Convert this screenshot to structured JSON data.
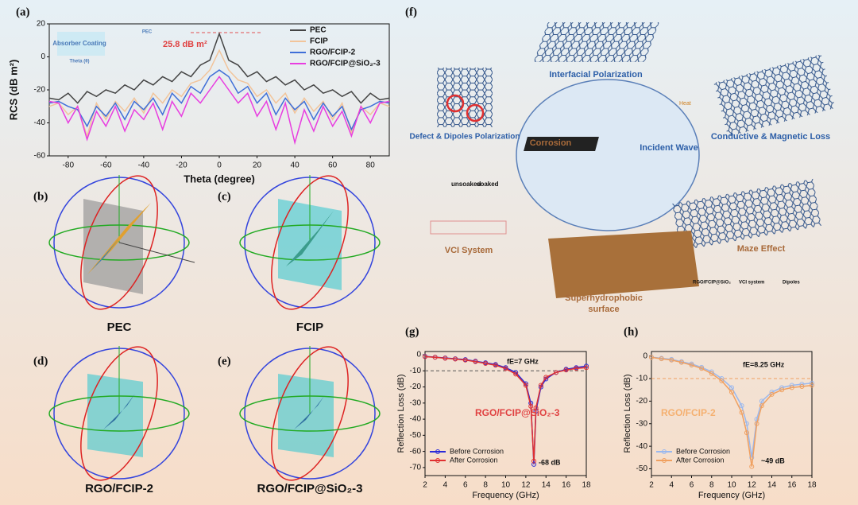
{
  "panels": {
    "labels": [
      "(a)",
      "(b)",
      "(c)",
      "(d)",
      "(e)",
      "(f)",
      "(g)",
      "(h)"
    ],
    "captions": [
      "PEC",
      "FCIP",
      "RGO/FCIP-2",
      "RGO/FCIP@SiO₂-3"
    ]
  },
  "diagram": {
    "labels": [
      "Interfacial Polarization",
      "Defect & Dipoles Polarization",
      "Conductive & Magnetic Loss",
      "Corrosion",
      "Incident Wave",
      "unsoaked",
      "soaked",
      "VCI System",
      "Maze Effect",
      "Superhydrophobic",
      "surface",
      "RGO/FCIP@SiO₂",
      "VCI system",
      "Dipoles",
      "Heat"
    ]
  },
  "chart_data": [
    {
      "type": "line",
      "xlabel": "Theta (degree)",
      "ylabel": "RCS (dB m²)",
      "annotations": [
        "25.8 dB m²"
      ],
      "inset_labels": [
        "Absorber Coating",
        "PEC",
        "Theta (θ)"
      ],
      "x": [
        -90,
        -85,
        -80,
        -75,
        -70,
        -65,
        -60,
        -55,
        -50,
        -45,
        -40,
        -35,
        -30,
        -25,
        -20,
        -15,
        -10,
        -5,
        0,
        5,
        10,
        15,
        20,
        25,
        30,
        35,
        40,
        45,
        50,
        55,
        60,
        65,
        70,
        75,
        80,
        85,
        90
      ],
      "xlim": [
        -90,
        90
      ],
      "xticks": [
        -80,
        -60,
        -40,
        -20,
        0,
        20,
        40,
        60,
        80
      ],
      "ylim": [
        -60,
        20
      ],
      "yticks": [
        -60,
        -40,
        -20,
        0,
        20
      ],
      "legend": "upper right",
      "markers": false,
      "series": [
        {
          "name": "PEC",
          "color": "#444444",
          "values": [
            -25,
            -26,
            -22,
            -28,
            -21,
            -24,
            -20,
            -22,
            -17,
            -20,
            -14,
            -17,
            -12,
            -15,
            -9,
            -12,
            -5,
            -2,
            14,
            -2,
            -5,
            -12,
            -9,
            -15,
            -12,
            -17,
            -14,
            -20,
            -17,
            -22,
            -20,
            -24,
            -21,
            -28,
            -22,
            -26,
            -25
          ]
        },
        {
          "name": "FCIP",
          "color": "#f2c49a",
          "values": [
            -30,
            -28,
            -35,
            -30,
            -48,
            -28,
            -38,
            -27,
            -33,
            -25,
            -34,
            -22,
            -28,
            -20,
            -24,
            -16,
            -14,
            -8,
            4,
            -8,
            -14,
            -16,
            -24,
            -20,
            -28,
            -22,
            -34,
            -25,
            -33,
            -27,
            -38,
            -28,
            -46,
            -30,
            -35,
            -28,
            -30
          ]
        },
        {
          "name": "RGO/FCIP-2",
          "color": "#3f6fd8",
          "values": [
            -28,
            -27,
            -30,
            -32,
            -42,
            -30,
            -36,
            -28,
            -38,
            -27,
            -32,
            -25,
            -35,
            -22,
            -28,
            -18,
            -22,
            -12,
            -8,
            -12,
            -22,
            -18,
            -28,
            -22,
            -35,
            -25,
            -32,
            -27,
            -38,
            -28,
            -36,
            -30,
            -44,
            -32,
            -30,
            -27,
            -28
          ]
        },
        {
          "name": "RGO/FCIP@SiO₂-3",
          "color": "#e83ee0",
          "values": [
            -27,
            -28,
            -40,
            -30,
            -50,
            -33,
            -42,
            -30,
            -45,
            -32,
            -38,
            -28,
            -44,
            -27,
            -36,
            -22,
            -28,
            -20,
            -12,
            -20,
            -28,
            -22,
            -36,
            -27,
            -44,
            -28,
            -52,
            -32,
            -45,
            -30,
            -42,
            -33,
            -48,
            -30,
            -40,
            -28,
            -27
          ]
        }
      ]
    },
    {
      "type": "line",
      "xlabel": "Frequency (GHz)",
      "ylabel": "Reflection Loss (dB)",
      "annotations": [
        "fE=7 GHz",
        "-68 dB",
        "RGO/FCIP@SiO₂-3"
      ],
      "threshold": -10,
      "x": [
        2,
        3,
        4,
        5,
        6,
        7,
        8,
        9,
        10,
        11,
        12,
        12.5,
        12.8,
        13,
        13.5,
        14,
        15,
        16,
        17,
        18
      ],
      "xlim": [
        2,
        18
      ],
      "xticks": [
        2,
        4,
        6,
        8,
        10,
        12,
        14,
        16,
        18
      ],
      "ylim": [
        -75,
        2
      ],
      "yticks": [
        0,
        -10,
        -20,
        -30,
        -40,
        -50,
        -60,
        -70
      ],
      "legend": "lower left",
      "markers": true,
      "series": [
        {
          "name": "Before Corrosion",
          "color": "#2a2ad8",
          "values": [
            -1,
            -1.5,
            -2,
            -2.5,
            -3,
            -4,
            -5,
            -6,
            -8,
            -11,
            -18,
            -30,
            -68,
            -35,
            -20,
            -15,
            -11,
            -9,
            -8,
            -7
          ]
        },
        {
          "name": "After Corrosion",
          "color": "#e03030",
          "values": [
            -1.2,
            -1.6,
            -2.2,
            -2.7,
            -3.3,
            -4.3,
            -5.4,
            -6.5,
            -8.6,
            -12,
            -19,
            -32,
            -66,
            -33,
            -19,
            -14,
            -11,
            -9.5,
            -8.5,
            -8
          ]
        }
      ]
    },
    {
      "type": "line",
      "xlabel": "Frequency (GHz)",
      "ylabel": "Reflection Loss (dB)",
      "annotations": [
        "fE=8.25 GHz",
        "~49 dB",
        "RGO/FCIP-2"
      ],
      "threshold": -10,
      "x": [
        2,
        3,
        4,
        5,
        6,
        7,
        8,
        9,
        10,
        11,
        11.5,
        12,
        12.5,
        13,
        14,
        15,
        16,
        17,
        18
      ],
      "xlim": [
        2,
        18
      ],
      "xticks": [
        2,
        4,
        6,
        8,
        10,
        12,
        14,
        16,
        18
      ],
      "ylim": [
        -53,
        2
      ],
      "yticks": [
        0,
        -10,
        -20,
        -30,
        -40,
        -50
      ],
      "legend": "lower left",
      "markers": true,
      "series": [
        {
          "name": "Before Corrosion",
          "color": "#9ab8ee",
          "values": [
            -0.5,
            -1,
            -1.5,
            -2.5,
            -3.5,
            -5,
            -7,
            -10,
            -14,
            -22,
            -30,
            -45,
            -28,
            -20,
            -16,
            -14,
            -13,
            -12.5,
            -12
          ]
        },
        {
          "name": "After Corrosion",
          "color": "#f0a060",
          "values": [
            -0.6,
            -1.2,
            -1.8,
            -2.8,
            -4,
            -5.5,
            -7.8,
            -11,
            -16,
            -25,
            -34,
            -49,
            -30,
            -22,
            -17,
            -15,
            -14,
            -13.5,
            -13
          ]
        }
      ]
    }
  ]
}
